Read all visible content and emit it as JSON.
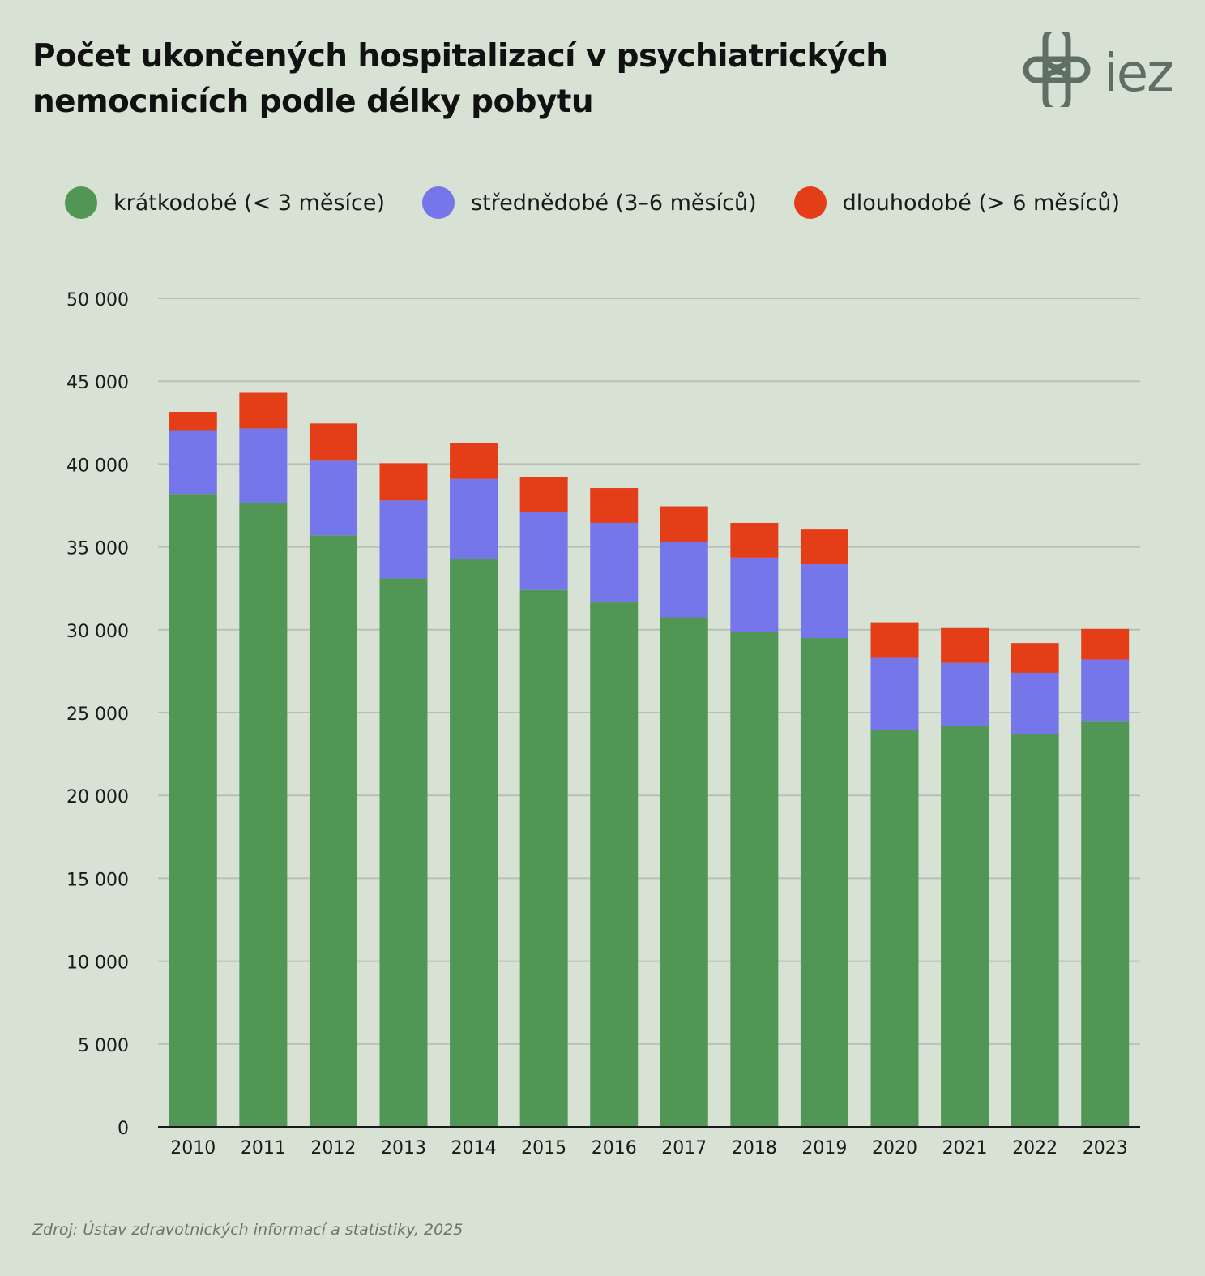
{
  "title": "Počet ukončených hospitalizací v psychiatrických nemocnicích podle délky pobytu",
  "logo": {
    "text": "iez",
    "icon": "cross-knot-icon",
    "color": "#5f6f63"
  },
  "legend": [
    {
      "label": "krátkodobé (< 3 měsíce)",
      "color": "#519655"
    },
    {
      "label": "střednědobé (3–6 měsíců)",
      "color": "#7576ea"
    },
    {
      "label": "dlouhodobé (> 6 měsíců)",
      "color": "#e43e18"
    }
  ],
  "source": "Zdroj: Ústav zdravotnických informací a statistiky, 2025",
  "chart_data": {
    "type": "bar",
    "stacked": true,
    "title": "Počet ukončených hospitalizací v psychiatrických nemocnicích podle délky pobytu",
    "xlabel": "",
    "ylabel": "",
    "ylim": [
      0,
      50000
    ],
    "yticks": [
      0,
      5000,
      10000,
      15000,
      20000,
      25000,
      30000,
      35000,
      40000,
      45000,
      50000
    ],
    "ytick_labels": [
      "0",
      "5 000",
      "10 000",
      "15 000",
      "20 000",
      "25 000",
      "30 000",
      "35 000",
      "40 000",
      "45 000",
      "50 000"
    ],
    "grid": true,
    "legend_position": "top",
    "categories": [
      "2010",
      "2011",
      "2012",
      "2013",
      "2014",
      "2015",
      "2016",
      "2017",
      "2018",
      "2019",
      "2020",
      "2021",
      "2022",
      "2023"
    ],
    "series": [
      {
        "name": "krátkodobé (< 3 měsíce)",
        "color": "#519655",
        "values": [
          38200,
          37650,
          35700,
          33100,
          34250,
          32400,
          31650,
          30750,
          29850,
          29500,
          23950,
          24200,
          23700,
          24450
        ]
      },
      {
        "name": "střednědobé (3–6 měsíců)",
        "color": "#7576ea",
        "values": [
          3800,
          4500,
          4500,
          4700,
          4850,
          4700,
          4800,
          4550,
          4500,
          4450,
          4350,
          3800,
          3700,
          3750
        ]
      },
      {
        "name": "dlouhodobé (> 6 měsíců)",
        "color": "#e43e18",
        "values": [
          1150,
          2150,
          2250,
          2250,
          2150,
          2100,
          2100,
          2150,
          2100,
          2100,
          2150,
          2100,
          1800,
          1850
        ]
      }
    ]
  }
}
